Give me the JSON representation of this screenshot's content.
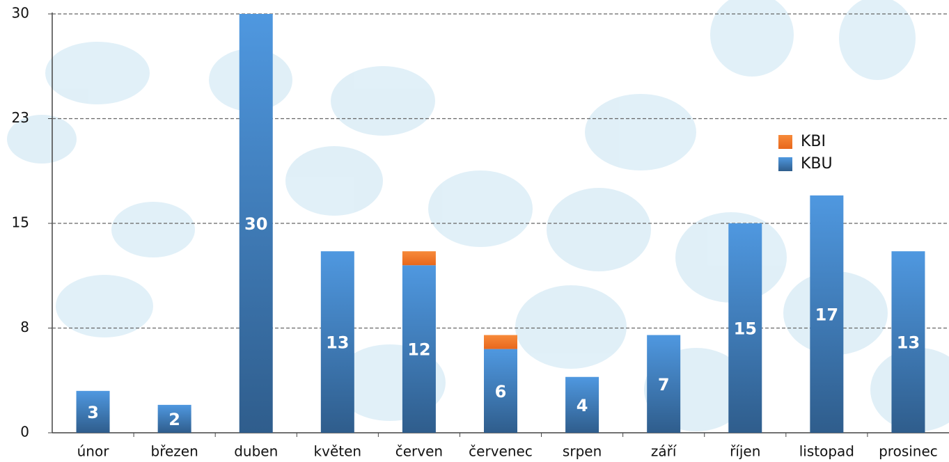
{
  "chart_data": {
    "type": "stacked_bar",
    "categories": [
      "únor",
      "březen",
      "duben",
      "květen",
      "červen",
      "červenec",
      "srpen",
      "září",
      "říjen",
      "listopad",
      "prosinec"
    ],
    "series": [
      {
        "name": "KBU",
        "color": "#3f80c4",
        "values": [
          3,
          2,
          30,
          13,
          12,
          6,
          4,
          7,
          15,
          17,
          13
        ]
      },
      {
        "name": "KBI",
        "color": "#f07a2a",
        "values": [
          0,
          0,
          0,
          0,
          1,
          1,
          0,
          0,
          0,
          0,
          0
        ]
      }
    ],
    "ylim": [
      0,
      30
    ],
    "yticks": [
      0,
      {
        "value": 7.5,
        "label": "8"
      },
      15,
      {
        "value": 22.5,
        "label": "23"
      },
      30
    ],
    "grid": true,
    "legend": "right"
  }
}
